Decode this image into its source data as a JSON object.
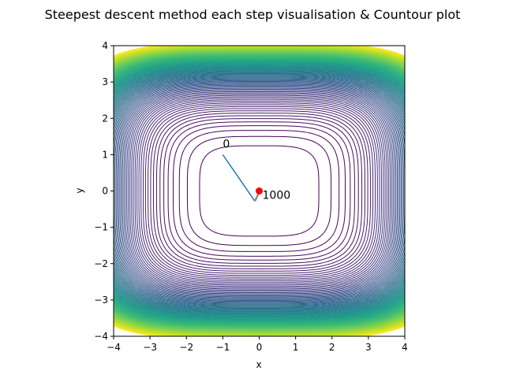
{
  "chart_data": {
    "type": "contour",
    "title": "Steepest descent method each step visualisation & Countour plot",
    "xlabel": "x",
    "ylabel": "y",
    "xlim": [
      -4,
      4
    ],
    "ylim": [
      -4,
      4
    ],
    "xticks": [
      -4,
      -3,
      -2,
      -1,
      0,
      1,
      2,
      3,
      4
    ],
    "yticks": [
      -4,
      -3,
      -2,
      -1,
      0,
      1,
      2,
      3,
      4
    ],
    "xtick_labels": [
      "−4",
      "−3",
      "−2",
      "−1",
      "0",
      "1",
      "2",
      "3",
      "4"
    ],
    "ytick_labels": [
      "−4",
      "−3",
      "−2",
      "−1",
      "0",
      "1",
      "2",
      "3",
      "4"
    ],
    "grid": false,
    "aspect": "equal",
    "contour": {
      "function": "x^4/8 + 3*y^4/8 + 0.1",
      "levels": [
        1,
        2,
        3,
        4,
        5,
        6,
        7,
        8,
        9,
        10,
        11,
        12,
        13,
        14,
        15,
        16,
        17,
        18,
        19,
        20,
        21,
        22,
        23,
        24,
        25,
        26,
        27,
        28,
        29,
        30,
        31,
        32,
        33,
        34,
        35,
        36,
        37,
        38,
        39,
        40,
        41,
        42,
        43,
        44,
        45,
        46,
        47,
        48,
        49,
        50,
        51,
        52,
        53,
        54,
        55,
        56,
        57,
        58,
        59,
        60,
        61,
        62,
        63,
        64,
        65,
        66,
        67,
        68,
        69,
        70,
        71,
        72,
        73,
        74,
        75,
        76,
        77,
        78,
        79,
        80,
        81,
        82,
        83,
        84,
        85,
        86,
        87,
        88,
        89,
        90,
        91,
        92,
        93,
        94,
        95,
        96,
        97,
        98,
        99,
        100,
        101,
        102,
        103,
        104
      ],
      "colormap": "viridis"
    },
    "path": {
      "x": [
        -1.0,
        -0.12,
        -0.02,
        0.0
      ],
      "y": [
        1.0,
        -0.28,
        -0.08,
        0.0
      ],
      "color": "#1f77b4",
      "tail_color": "#8c8c8c"
    },
    "annotations": [
      {
        "text": "0",
        "x": -1.0,
        "y": 1.0
      },
      {
        "text": "1000",
        "x": 0.0,
        "y": 0.0
      }
    ],
    "final_point": {
      "x": 0.0,
      "y": 0.0,
      "color": "#ff0000"
    }
  }
}
